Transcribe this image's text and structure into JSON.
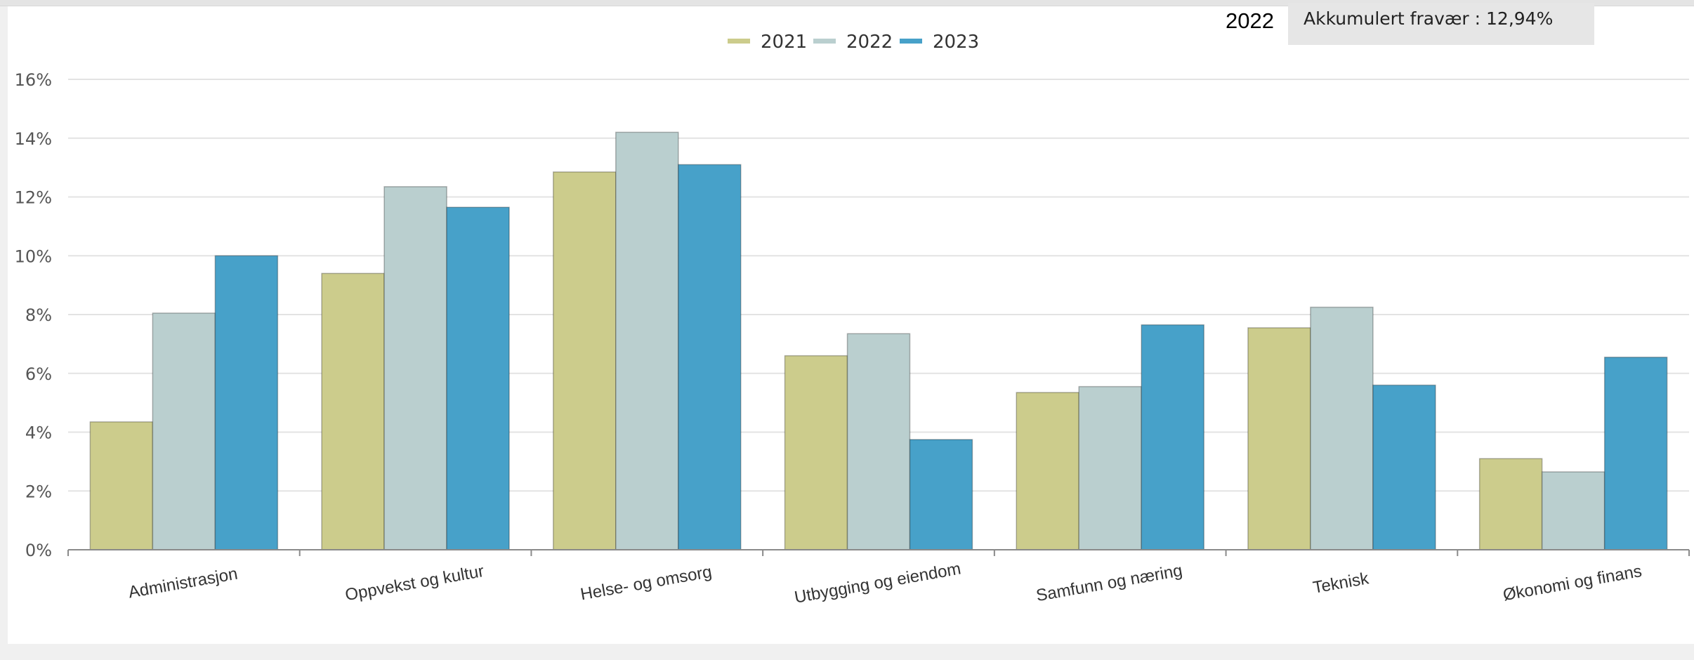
{
  "tooltip": {
    "label": "2022",
    "text": "Akkumulert fravær : 12,94%"
  },
  "chart_data": {
    "type": "bar",
    "title": "",
    "xlabel": "",
    "ylabel": "",
    "ylim": [
      0,
      16
    ],
    "yticks": [
      "0%",
      "2%",
      "4%",
      "6%",
      "8%",
      "10%",
      "12%",
      "14%",
      "16%"
    ],
    "grid": true,
    "legend_position": "top-center",
    "categories": [
      "Administrasjon",
      "Oppvekst og kultur",
      "Helse- og omsorg",
      "Utbygging og eiendom",
      "Samfunn og næring",
      "Teknisk",
      "Økonomi og finans"
    ],
    "series": [
      {
        "name": "2021",
        "color": "#cccc8c",
        "values": [
          4.35,
          9.4,
          12.85,
          6.6,
          5.35,
          7.55,
          3.1
        ]
      },
      {
        "name": "2022",
        "color": "#bacfcf",
        "values": [
          8.05,
          12.35,
          14.2,
          7.35,
          5.55,
          8.25,
          2.65
        ]
      },
      {
        "name": "2023",
        "color": "#47a1c9",
        "values": [
          10.0,
          11.65,
          13.1,
          3.75,
          7.65,
          5.6,
          6.55
        ]
      }
    ]
  }
}
